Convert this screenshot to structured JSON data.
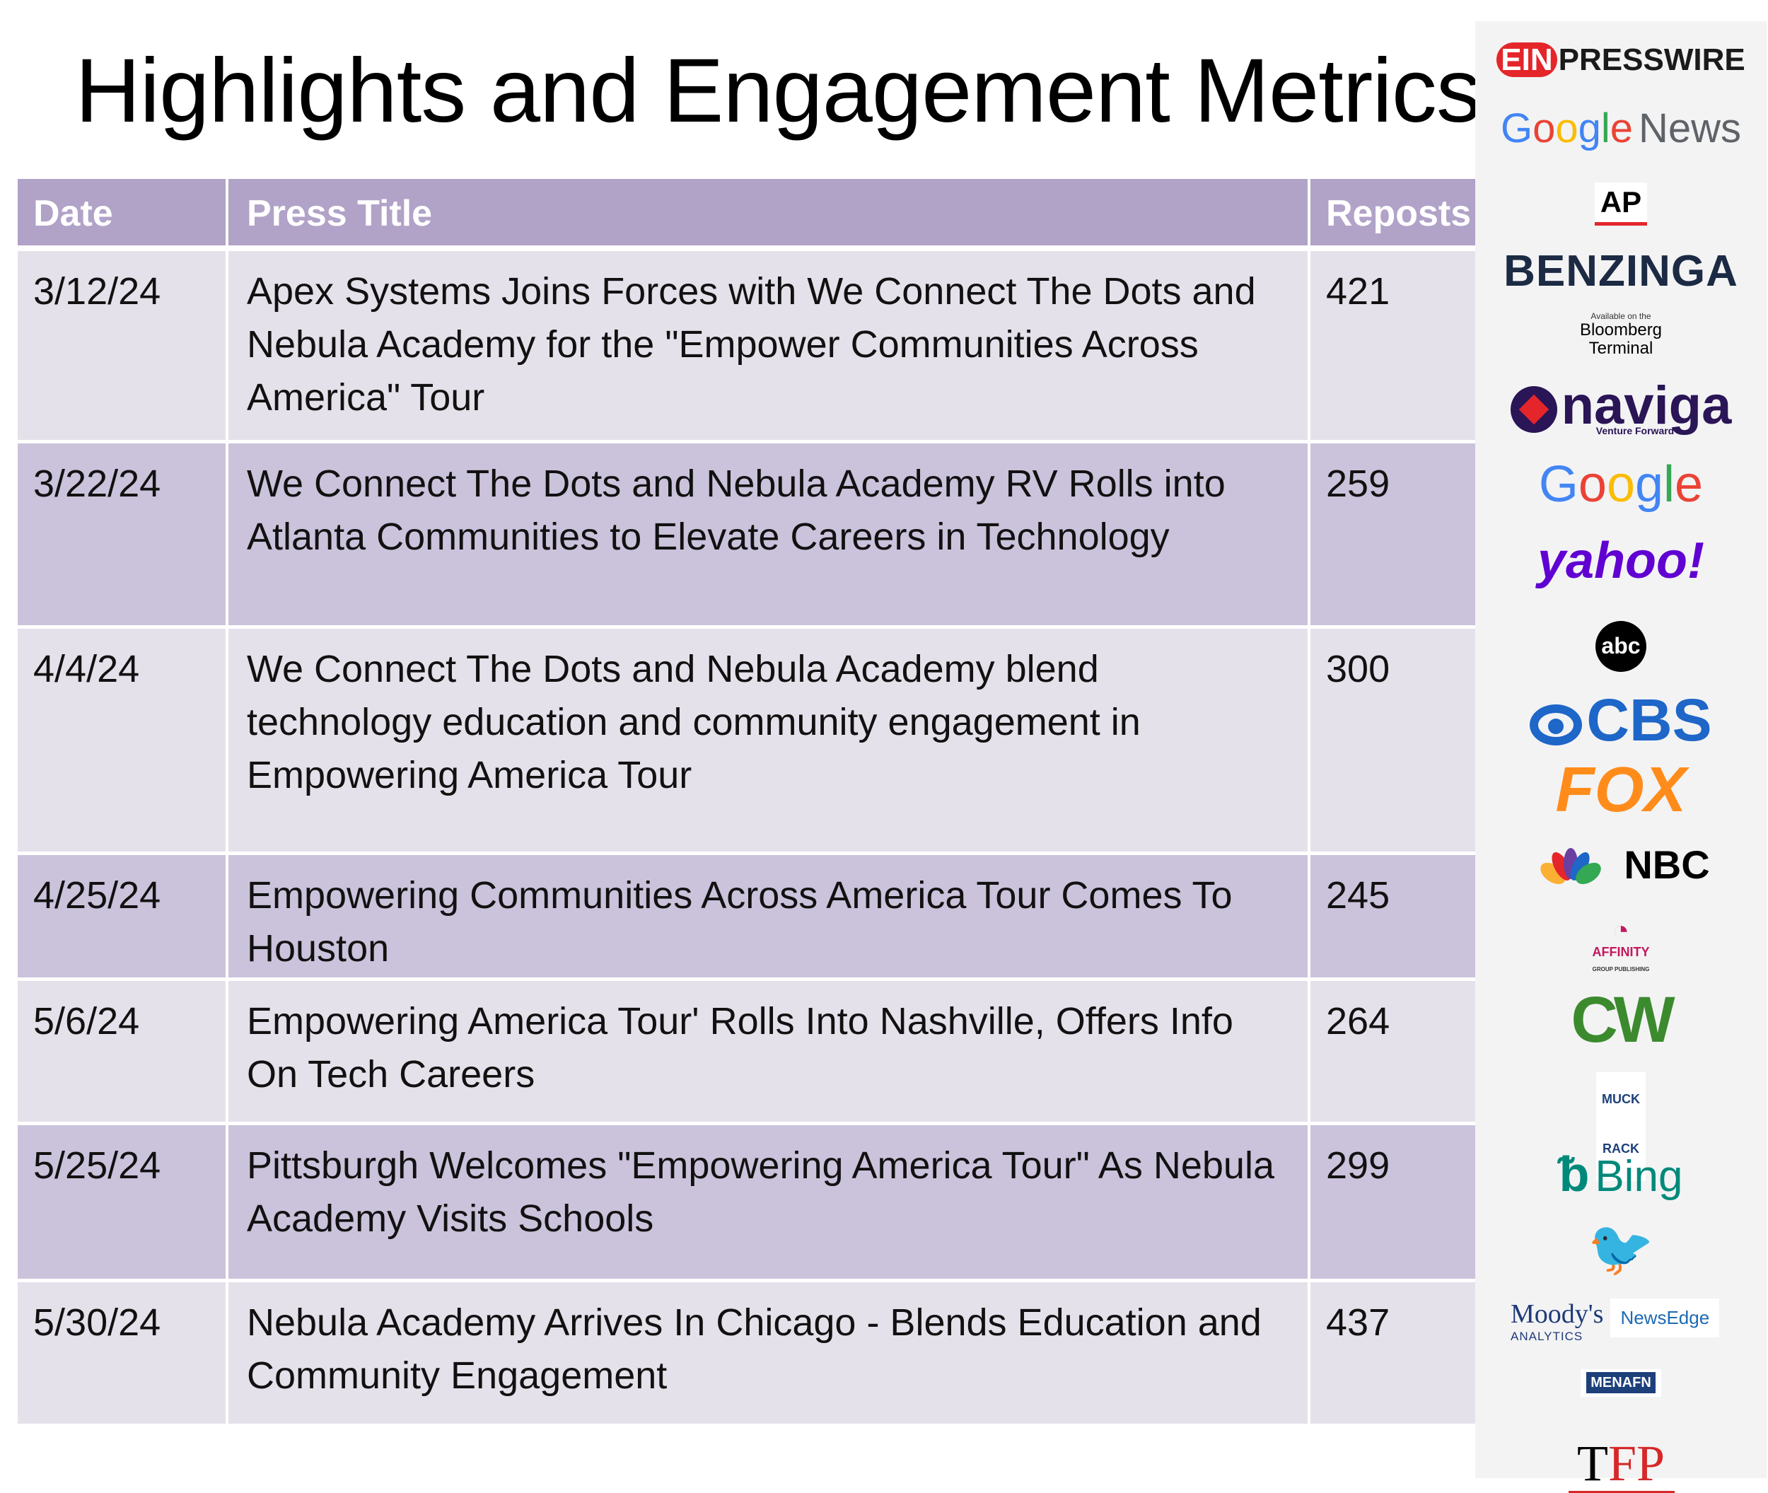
{
  "title": "Highlights and Engagement Metrics",
  "table": {
    "headers": {
      "date": "Date",
      "press_title": "Press Title",
      "reposts": "Reposts"
    },
    "rows": [
      {
        "date": "3/12/24",
        "title": "Apex Systems Joins Forces with We Connect The Dots and Nebula Academy for the \"Empower Communities Across America\" Tour",
        "reposts": "421"
      },
      {
        "date": "3/22/24",
        "title": "We Connect The Dots and Nebula Academy RV Rolls into Atlanta Communities to Elevate Careers in Technology",
        "reposts": "259"
      },
      {
        "date": "4/4/24",
        "title": "We Connect The Dots and Nebula Academy blend technology education and community engagement in Empowering America Tour",
        "reposts": "300"
      },
      {
        "date": "4/25/24",
        "title": "Empowering Communities Across America Tour Comes To Houston",
        "reposts": "245"
      },
      {
        "date": "5/6/24",
        "title": "Empowering America Tour' Rolls Into Nashville, Offers Info On Tech Careers",
        "reposts": "264"
      },
      {
        "date": "5/25/24",
        "title": "Pittsburgh Welcomes \"Empowering America Tour\" As Nebula Academy Visits Schools",
        "reposts": "299"
      },
      {
        "date": "5/30/24",
        "title": "Nebula Academy Arrives In Chicago - Blends Education and Community Engagement",
        "reposts": "437"
      }
    ]
  },
  "logos": {
    "ein_mark": "EIN",
    "ein_text": "PRESSWIRE",
    "google_news": {
      "g1": "G",
      "g2": "o",
      "g3": "o",
      "g4": "g",
      "g5": "l",
      "g6": "e",
      "news": "News"
    },
    "ap": "AP",
    "benzinga": "BENZINGA",
    "bloomberg": {
      "avail": "Available on the",
      "line1": "Bloomberg",
      "line2": "Terminal"
    },
    "naviga": {
      "name": "naviga",
      "tagline": "Venture Forward"
    },
    "google": {
      "g1": "G",
      "g2": "o",
      "g3": "o",
      "g4": "g",
      "g5": "l",
      "g6": "e"
    },
    "yahoo": "yahoo!",
    "abc": "abc",
    "cbs": "CBS",
    "fox": "FOX",
    "nbc": "NBC",
    "affinity": {
      "name": "AFFINITY",
      "sub": "GROUP PUBLISHING"
    },
    "cw": "CW",
    "muckrack": {
      "l1": "MUCK",
      "l2": "RACK"
    },
    "bing": "Bing",
    "moodys": {
      "name": "Moody's",
      "sub": "ANALYTICS",
      "newsedge": "NewsEdge"
    },
    "menafn": "MENAFN",
    "tfp": {
      "t": "T",
      "fp": "FP"
    }
  },
  "colors": {
    "header_bg": "#b1a2c8",
    "row_light": "#e5e1ea",
    "row_dark": "#cbc2db"
  }
}
